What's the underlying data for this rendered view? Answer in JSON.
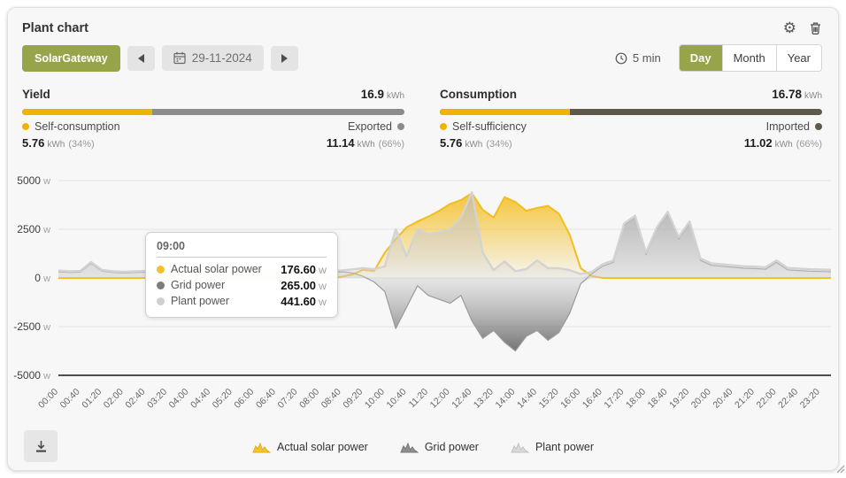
{
  "header": {
    "title": "Plant chart"
  },
  "toolbar": {
    "gateway_label": "SolarGateway",
    "date_value": "29-11-2024",
    "interval_label": "5 min",
    "view_tabs": [
      {
        "label": "Day",
        "active": true
      },
      {
        "label": "Month",
        "active": false
      },
      {
        "label": "Year",
        "active": false
      }
    ]
  },
  "colors": {
    "accent_olive": "#97a44a",
    "bar_yellow": "#f0b400",
    "yield_gray": "#8c8c8c",
    "consumption_dark": "#5e5a4b",
    "solar_yellow": "#f4c32e",
    "grid_gray": "#8f8f8f",
    "plant_light_gray": "#d9d9d9"
  },
  "summary": {
    "yield": {
      "title": "Yield",
      "total_value": "16.9",
      "total_unit": "kWh",
      "bar_left_pct": 34,
      "left_color": "#f0b400",
      "right_color": "#8c8c8c",
      "left_label": "Self-consumption",
      "right_label": "Exported",
      "left_value": "5.76",
      "left_unit": "kWh",
      "left_pct_text": "(34%)",
      "right_value": "11.14",
      "right_unit": "kWh",
      "right_pct_text": "(66%)"
    },
    "consumption": {
      "title": "Consumption",
      "total_value": "16.78",
      "total_unit": "kWh",
      "bar_left_pct": 34,
      "left_color": "#f0b400",
      "right_color": "#5e5a4b",
      "left_label": "Self-sufficiency",
      "right_label": "Imported",
      "left_value": "5.76",
      "left_unit": "kWh",
      "left_pct_text": "(34%)",
      "right_value": "11.02",
      "right_unit": "kWh",
      "right_pct_text": "(66%)"
    }
  },
  "tooltip": {
    "time": "09:00",
    "rows": [
      {
        "label": "Actual solar power",
        "value": "176.60",
        "unit": "W",
        "color": "#f2c12c"
      },
      {
        "label": "Grid power",
        "value": "265.00",
        "unit": "W",
        "color": "#7d7d7d"
      },
      {
        "label": "Plant power",
        "value": "441.60",
        "unit": "W",
        "color": "#cfcfcf"
      }
    ]
  },
  "legend": {
    "items": [
      {
        "label": "Actual solar power",
        "color": "#f4c32e",
        "stroke": "#e0ae15"
      },
      {
        "label": "Grid power",
        "color": "#8f8f8f",
        "stroke": "#777777"
      },
      {
        "label": "Plant power",
        "color": "#d9d9d9",
        "stroke": "#c2c2c2"
      }
    ]
  },
  "chart_data": {
    "type": "area",
    "title": "",
    "xlabel": "",
    "ylabel": "W",
    "ylim": [
      -5000,
      5000
    ],
    "y_ticks": [
      5000,
      2500,
      0,
      -2500,
      -5000
    ],
    "y_unit": "W",
    "x_step_minutes": 20,
    "x_tick_labels": [
      "00:00",
      "00:40",
      "01:20",
      "02:00",
      "02:40",
      "03:20",
      "04:00",
      "04:40",
      "05:20",
      "06:00",
      "06:40",
      "07:20",
      "08:00",
      "08:40",
      "09:20",
      "10:00",
      "10:40",
      "11:20",
      "12:00",
      "12:40",
      "13:20",
      "14:00",
      "14:40",
      "15:20",
      "16:00",
      "16:40",
      "17:20",
      "18:00",
      "18:40",
      "19:20",
      "20:00",
      "20:40",
      "21:20",
      "22:00",
      "22:40",
      "23:20"
    ],
    "legend_position": "bottom",
    "grid": true,
    "series": [
      {
        "name": "Actual solar power",
        "color": "#f4c32e",
        "values": [
          0,
          0,
          0,
          0,
          0,
          0,
          0,
          0,
          0,
          0,
          0,
          0,
          0,
          0,
          0,
          0,
          0,
          0,
          0,
          0,
          0,
          0,
          0,
          0,
          0,
          0,
          60,
          177,
          420,
          350,
          1300,
          2000,
          2600,
          2900,
          3150,
          3450,
          3800,
          4000,
          4350,
          3500,
          3100,
          4150,
          3900,
          3450,
          3600,
          3700,
          3300,
          2200,
          500,
          100,
          0,
          0,
          0,
          0,
          0,
          0,
          0,
          0,
          0,
          0,
          0,
          0,
          0,
          0,
          0,
          0,
          0,
          0,
          0,
          0,
          0,
          0
        ]
      },
      {
        "name": "Grid power",
        "color": "#8f8f8f",
        "values": [
          320,
          280,
          300,
          750,
          350,
          280,
          260,
          280,
          300,
          280,
          320,
          280,
          260,
          300,
          280,
          300,
          280,
          320,
          300,
          340,
          300,
          320,
          300,
          340,
          320,
          300,
          320,
          265,
          80,
          -200,
          -700,
          -2600,
          -1500,
          -400,
          -900,
          -1100,
          -1300,
          -900,
          -2200,
          -3100,
          -2700,
          -3300,
          -3750,
          -3000,
          -2700,
          -3200,
          -2800,
          -1800,
          -300,
          200,
          600,
          800,
          2700,
          3100,
          1200,
          2500,
          3300,
          2000,
          2800,
          900,
          650,
          600,
          550,
          500,
          480,
          450,
          800,
          420,
          380,
          350,
          330,
          320
        ]
      },
      {
        "name": "Plant power",
        "color": "#d9d9d9",
        "values": [
          380,
          340,
          360,
          820,
          410,
          340,
          320,
          340,
          360,
          340,
          380,
          340,
          320,
          360,
          340,
          360,
          340,
          380,
          360,
          400,
          360,
          380,
          360,
          400,
          380,
          360,
          380,
          442,
          500,
          450,
          600,
          2500,
          1100,
          2500,
          2250,
          2350,
          2500,
          3100,
          4400,
          1300,
          400,
          850,
          350,
          450,
          900,
          500,
          500,
          400,
          200,
          300,
          700,
          900,
          2800,
          3200,
          1300,
          2600,
          3400,
          2100,
          2900,
          1000,
          750,
          700,
          650,
          600,
          580,
          550,
          900,
          520,
          480,
          450,
          430,
          420
        ]
      }
    ]
  }
}
